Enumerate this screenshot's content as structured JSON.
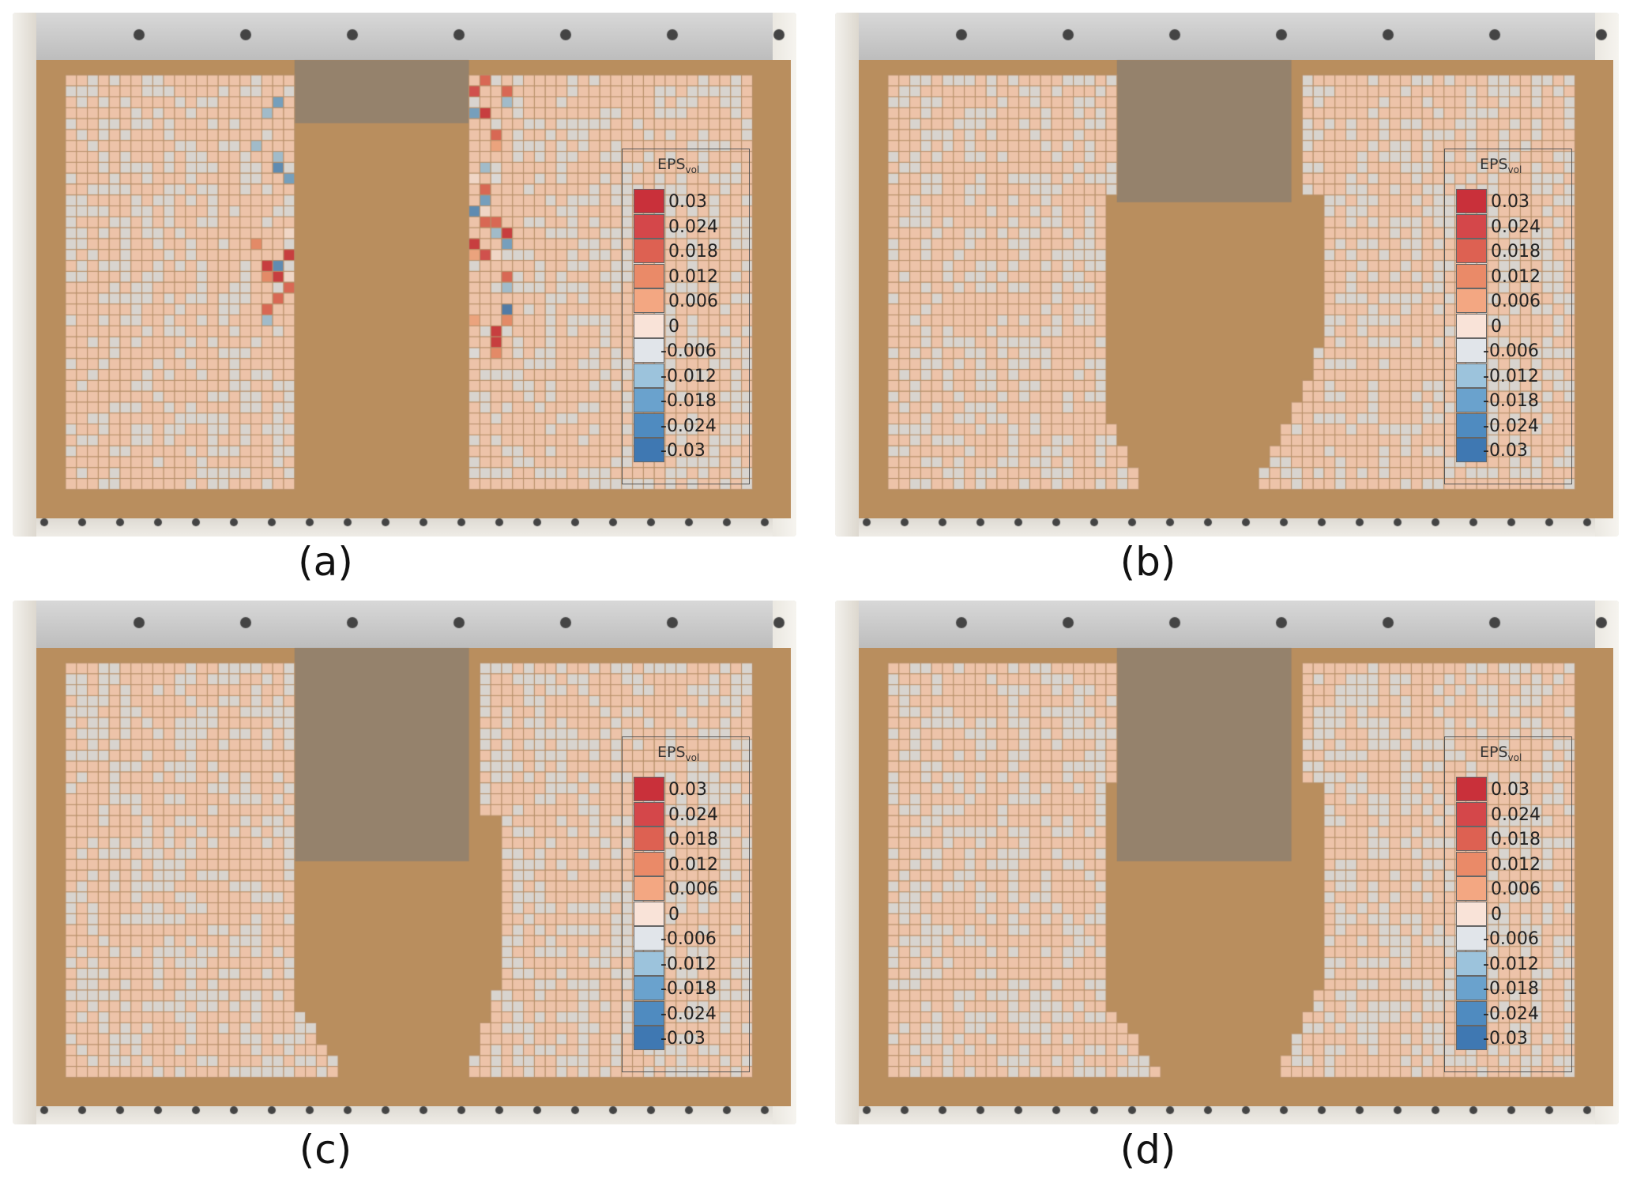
{
  "figure": {
    "panels": [
      {
        "id": "a",
        "caption": "(a)"
      },
      {
        "id": "b",
        "caption": "(b)"
      },
      {
        "id": "c",
        "caption": "(c)"
      },
      {
        "id": "d",
        "caption": "(d)"
      }
    ],
    "legend": {
      "title_main": "EPS",
      "title_sub": "vol",
      "ticks": [
        "0.03",
        "0.024",
        "0.018",
        "0.012",
        "0.006",
        "0",
        "-0.006",
        "-0.012",
        "-0.018",
        "-0.024",
        "-0.03"
      ],
      "colors": [
        "#c9303a",
        "#d4474a",
        "#dd6152",
        "#ea8a68",
        "#f3a782",
        "#f9e3d8",
        "#e1e5ea",
        "#9cc3dc",
        "#6aa2cd",
        "#4f8bc0",
        "#3f78b2"
      ]
    },
    "colors": {
      "sand": "#b98e5e",
      "cell_positive": "#f6cdb6",
      "cell_zero": "#dde0e3",
      "grid_line": "#b7906a"
    }
  }
}
